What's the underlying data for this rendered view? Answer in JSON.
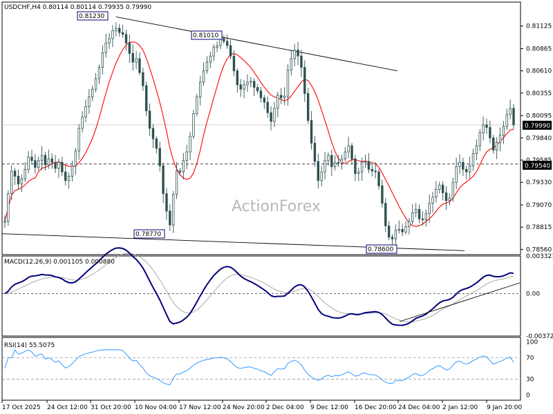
{
  "chart_data": [
    {
      "type": "candlestick",
      "symbol": "USDCHF,H4",
      "ohlc_header": "0.80114 0.80114 0.79935 0.79990",
      "header": "USDCHF,H4  0.80114 0.80114 0.79935 0.79990",
      "watermark": "ActionForex",
      "ylim": [
        0.785,
        0.814
      ],
      "y_ticks": [
        "0.81125",
        "0.80865",
        "0.80610",
        "0.80355",
        "0.80095",
        "0.79840",
        "0.79585",
        "0.79330",
        "0.79070",
        "0.78815",
        "0.78560"
      ],
      "current_price": "0.79990",
      "horizontal_level": "0.79540",
      "ma_color": "#ff0000",
      "bar_color": "#2f5050",
      "close_series": [
        0.7888,
        0.792,
        0.7946,
        0.794,
        0.7931,
        0.7937,
        0.7948,
        0.7962,
        0.7958,
        0.795,
        0.7958,
        0.7964,
        0.7953,
        0.796,
        0.7956,
        0.7949,
        0.7956,
        0.7945,
        0.7935,
        0.794,
        0.7952,
        0.7969,
        0.7995,
        0.8008,
        0.802,
        0.8031,
        0.804,
        0.8052,
        0.8065,
        0.8082,
        0.8093,
        0.8098,
        0.8107,
        0.811,
        0.8105,
        0.8103,
        0.8093,
        0.8081,
        0.8071,
        0.8075,
        0.8059,
        0.8044,
        0.8015,
        0.7995,
        0.7983,
        0.7972,
        0.7952,
        0.792,
        0.79,
        0.7884,
        0.7919,
        0.7946,
        0.7945,
        0.7958,
        0.7968,
        0.7986,
        0.8012,
        0.8031,
        0.8048,
        0.8061,
        0.8071,
        0.8078,
        0.8088,
        0.809,
        0.8098,
        0.8095,
        0.809,
        0.8078,
        0.8061,
        0.8045,
        0.804,
        0.8045,
        0.8048,
        0.8049,
        0.8042,
        0.8038,
        0.803,
        0.8025,
        0.8013,
        0.8003,
        0.8018,
        0.8033,
        0.803,
        0.8032,
        0.8062,
        0.8075,
        0.8085,
        0.8078,
        0.8065,
        0.8035,
        0.8004,
        0.7978,
        0.7957,
        0.7935,
        0.7945,
        0.7958,
        0.7964,
        0.7951,
        0.7956,
        0.7955,
        0.796,
        0.7968,
        0.7975,
        0.796,
        0.7943,
        0.7945,
        0.7956,
        0.7957,
        0.7948,
        0.7946,
        0.7945,
        0.7929,
        0.7909,
        0.7883,
        0.787,
        0.7868,
        0.7878,
        0.7879,
        0.7876,
        0.7882,
        0.7888,
        0.7898,
        0.7902,
        0.7891,
        0.789,
        0.7897,
        0.7909,
        0.7916,
        0.7925,
        0.793,
        0.7921,
        0.7912,
        0.7915,
        0.7933,
        0.7951,
        0.7956,
        0.7948,
        0.7945,
        0.7952,
        0.7966,
        0.7975,
        0.799,
        0.7999,
        0.7996,
        0.7984,
        0.797,
        0.7979,
        0.7987,
        0.7997,
        0.8011,
        0.8018,
        0.7999
      ],
      "annotations": [
        {
          "text": "0.81230"
        },
        {
          "text": "0.81010"
        },
        {
          "text": "0.78770"
        },
        {
          "text": "0.78600"
        }
      ],
      "trendlines": [
        "upper channel",
        "lower channel"
      ]
    },
    {
      "type": "line",
      "title": "MACD(12,26,9) 0.001105 0.000880",
      "y_ticks": [
        "0.003321",
        "0.00",
        "-0.003723"
      ],
      "ylim": [
        -0.00372,
        0.00332
      ],
      "series": [
        {
          "name": "MACD",
          "color": "#00007a"
        },
        {
          "name": "Signal",
          "color": "#a8a8a8"
        }
      ],
      "trendline": "support line"
    },
    {
      "type": "line",
      "title": "RSI(14) 55.5075",
      "y_ticks": [
        "100",
        "70",
        "30",
        "0"
      ],
      "ylim": [
        0,
        100
      ],
      "levels": [
        70,
        30
      ],
      "series": [
        {
          "name": "RSI",
          "color": "#1e90ff"
        }
      ]
    }
  ],
  "x_ticks": [
    "17 Oct 2025",
    "24 Oct 12:00",
    "31 Oct 20:00",
    "10 Nov 04:00",
    "17 Nov 12:00",
    "24 Nov 20:00",
    "2 Dec 04:00",
    "9 Dec 12:00",
    "16 Dec 20:00",
    "24 Dec 04:00",
    "2 Jan 12:00",
    "9 Jan 20:00"
  ]
}
